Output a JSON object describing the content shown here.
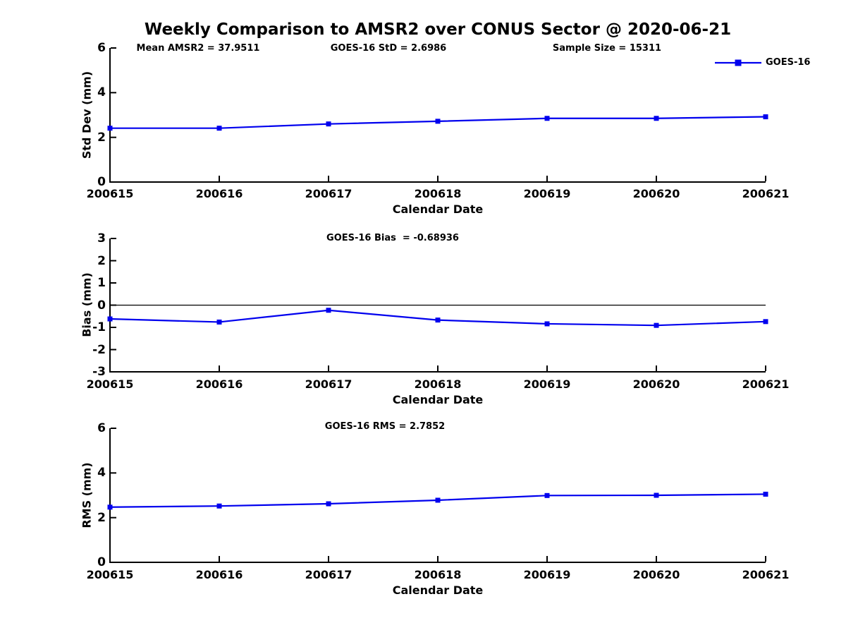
{
  "figure": {
    "title": "Weekly Comparison to AMSR2 over CONUS Sector @ 2020-06-21",
    "legend": {
      "label": "GOES-16",
      "marker": "square-on-line"
    },
    "colors": {
      "line": "#0000EE",
      "axis": "#000000",
      "zero_line": "#000000",
      "background": "#FFFFFF"
    }
  },
  "chart_data": [
    {
      "type": "line",
      "panel": "std-dev",
      "annotations": [
        "Mean AMSR2 = 37.9511",
        "GOES-16 StD = 2.6986",
        "Sample Size = 15311"
      ],
      "ylabel": "Std Dev (mm)",
      "xlabel": "Calendar Date",
      "categories": [
        "200615",
        "200616",
        "200617",
        "200618",
        "200619",
        "200620",
        "200621"
      ],
      "series": [
        {
          "name": "GOES-16",
          "values": [
            2.41,
            2.41,
            2.6,
            2.72,
            2.85,
            2.85,
            2.92
          ]
        }
      ],
      "ylim": [
        0,
        6
      ],
      "yticks": [
        0,
        2,
        4,
        6
      ],
      "grid": false,
      "zero_line": false,
      "legend_position": "top-right-outside"
    },
    {
      "type": "line",
      "panel": "bias",
      "annotations": [
        "GOES-16 Bias  = -0.68936"
      ],
      "ylabel": "Bias (mm)",
      "xlabel": "Calendar Date",
      "categories": [
        "200615",
        "200616",
        "200617",
        "200618",
        "200619",
        "200620",
        "200621"
      ],
      "series": [
        {
          "name": "GOES-16",
          "values": [
            -0.62,
            -0.76,
            -0.23,
            -0.67,
            -0.84,
            -0.91,
            -0.74
          ]
        }
      ],
      "ylim": [
        -3,
        3
      ],
      "yticks": [
        -3,
        -2,
        -1,
        0,
        1,
        2,
        3
      ],
      "grid": false,
      "zero_line": true
    },
    {
      "type": "line",
      "panel": "rms",
      "annotations": [
        "GOES-16 RMS = 2.7852"
      ],
      "ylabel": "RMS (mm)",
      "xlabel": "Calendar Date",
      "categories": [
        "200615",
        "200616",
        "200617",
        "200618",
        "200619",
        "200620",
        "200621"
      ],
      "series": [
        {
          "name": "GOES-16",
          "values": [
            2.47,
            2.52,
            2.62,
            2.78,
            2.99,
            3.0,
            3.05
          ]
        }
      ],
      "ylim": [
        0,
        6
      ],
      "yticks": [
        0,
        2,
        4,
        6
      ],
      "grid": false,
      "zero_line": false
    }
  ]
}
